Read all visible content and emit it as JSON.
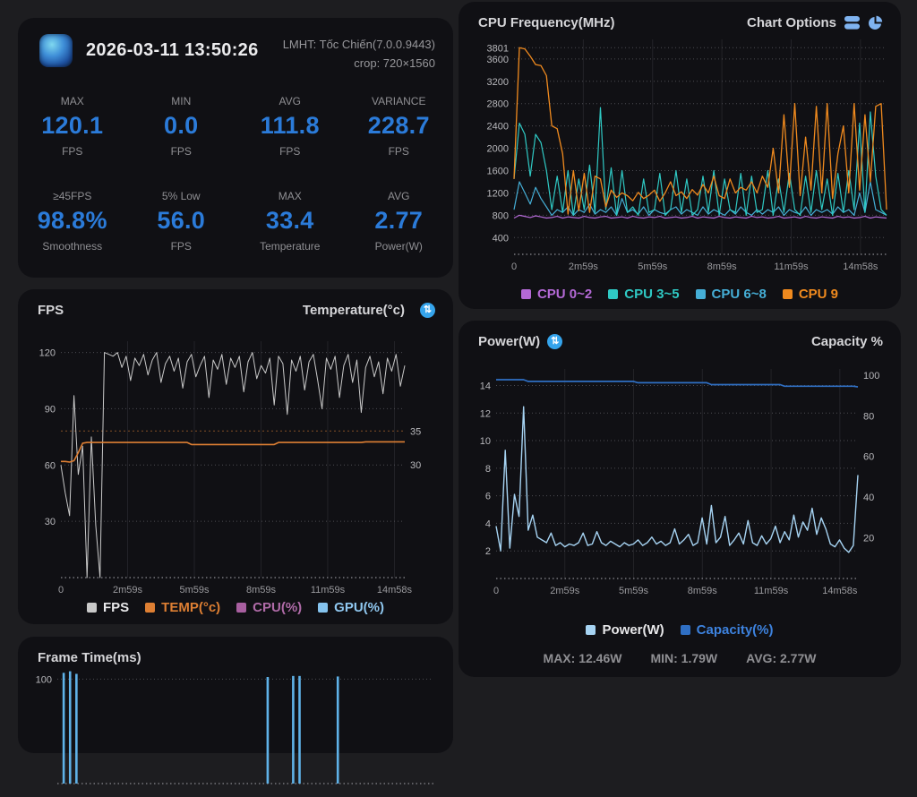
{
  "header": {
    "datetime": "2026-03-11 13:50:26",
    "app_name": "LMHT: Tốc Chiến(7.0.0.9443)",
    "crop": "crop: 720×1560"
  },
  "icons": {
    "swap": "⇅"
  },
  "stats": [
    {
      "label": "MAX",
      "value": "120.1",
      "unit": "FPS"
    },
    {
      "label": "MIN",
      "value": "0.0",
      "unit": "FPS"
    },
    {
      "label": "AVG",
      "value": "111.8",
      "unit": "FPS"
    },
    {
      "label": "VARIANCE",
      "value": "228.7",
      "unit": "FPS"
    },
    {
      "label": "≥45FPS",
      "value": "98.8%",
      "unit": "Smoothness"
    },
    {
      "label": "5% Low",
      "value": "56.0",
      "unit": "FPS"
    },
    {
      "label": "MAX",
      "value": "33.4",
      "unit": "Temperature"
    },
    {
      "label": "AVG",
      "value": "2.77",
      "unit": "Power(W)"
    }
  ],
  "chart_data": [
    {
      "id": "fps",
      "type": "line",
      "title": "FPS",
      "title_right": "Temperature(°c)",
      "x_ticks": [
        "0",
        "2m59s",
        "5m59s",
        "8m59s",
        "11m59s",
        "14m58s"
      ],
      "left_axis": {
        "label": "FPS",
        "range": [
          0,
          126
        ],
        "ticks": [
          30,
          60,
          90,
          120
        ]
      },
      "right_axis": {
        "label": "Temperature(°c)",
        "range": [
          13.3,
          48.3
        ],
        "ticks": [
          30,
          35
        ]
      },
      "extra_lines": [
        {
          "axis": "right",
          "value": 35,
          "color": "rgba(222,127,51,0.5)"
        }
      ],
      "series": [
        {
          "name": "FPS",
          "color": "#c9c9c9",
          "axis": "left",
          "width": 1,
          "values": [
            60,
            45,
            33,
            97,
            55,
            70,
            0,
            75,
            28,
            0,
            120,
            119,
            118,
            120,
            112,
            118,
            105,
            117,
            113,
            119,
            108,
            116,
            120,
            104,
            114,
            118,
            110,
            117,
            101,
            115,
            119,
            107,
            113,
            118,
            96,
            116,
            111,
            119,
            103,
            117,
            112,
            118,
            99,
            115,
            120,
            106,
            113,
            109,
            117,
            92,
            118,
            114,
            87,
            116,
            110,
            118,
            100,
            115,
            119,
            105,
            90,
            117,
            111,
            118,
            96,
            113,
            119,
            104,
            116,
            88,
            112,
            118,
            107,
            115,
            98,
            117,
            110,
            119,
            102,
            113
          ]
        },
        {
          "name": "TEMP(°c)",
          "color": "#de7f33",
          "axis": "right",
          "width": 1.6,
          "values": [
            30.5,
            30.5,
            30.4,
            30.6,
            31.8,
            33.2,
            33.3,
            33.3,
            33.3,
            33.3,
            33.3,
            33.3,
            33.3,
            33.3,
            33.3,
            33.3,
            33.3,
            33.3,
            33.3,
            33.3,
            33.3,
            33.3,
            33.3,
            33.3,
            33.3,
            33.3,
            33.3,
            33.3,
            33.3,
            33.3,
            33.0,
            33.0,
            33.0,
            33.0,
            33.0,
            33.0,
            33.0,
            33.0,
            33.0,
            33.0,
            33.0,
            33.0,
            33.0,
            33.0,
            33.0,
            33.0,
            33.0,
            33.0,
            33.0,
            33.0,
            33.3,
            33.3,
            33.3,
            33.3,
            33.3,
            33.3,
            33.3,
            33.3,
            33.3,
            33.3,
            33.3,
            33.3,
            33.3,
            33.3,
            33.3,
            33.3,
            33.3,
            33.3,
            33.3,
            33.3,
            33.4,
            33.4,
            33.4,
            33.4,
            33.4,
            33.4,
            33.4,
            33.4,
            33.4,
            33.4
          ]
        }
      ],
      "legend": [
        {
          "label": "FPS",
          "color": "#c9c9c9",
          "text": "#e8e8ea"
        },
        {
          "label": "TEMP(°c)",
          "color": "#de7f33",
          "text": "#de7f33"
        },
        {
          "label": "CPU(%)",
          "color": "#a85fa0",
          "text": "#b06ba8"
        },
        {
          "label": "GPU(%)",
          "color": "#85c3ee",
          "text": "#8fc7ef"
        }
      ]
    },
    {
      "id": "cpu_freq",
      "type": "line",
      "title": "CPU Frequency(MHz)",
      "options_label": "Chart Options",
      "x_ticks": [
        "0",
        "2m59s",
        "5m59s",
        "8m59s",
        "11m59s",
        "14m58s"
      ],
      "left_axis": {
        "label": "MHz",
        "range": [
          100,
          3950
        ],
        "ticks": [
          400,
          800,
          1200,
          1600,
          2000,
          2400,
          2800,
          3200,
          3600,
          3801
        ]
      },
      "series": [
        {
          "name": "CPU 0~2",
          "color": "#b469d6",
          "axis": "left",
          "width": 1.2,
          "values": [
            750,
            800,
            780,
            760,
            790,
            770,
            750,
            760,
            780,
            750,
            770,
            760,
            750,
            780,
            760,
            750,
            770,
            780,
            750,
            760,
            770,
            750,
            780,
            760,
            750,
            770,
            760,
            780,
            750,
            760,
            770,
            750,
            760,
            780,
            750,
            770,
            760,
            750,
            780,
            760,
            750,
            770,
            760,
            750,
            780,
            760,
            770,
            750,
            760,
            780,
            750,
            760,
            770,
            750,
            780,
            760,
            750,
            770,
            760,
            750,
            780,
            760,
            770,
            750,
            760,
            780,
            750,
            770,
            760,
            750
          ]
        },
        {
          "name": "CPU 6~8",
          "color": "#45aed6",
          "axis": "left",
          "width": 1.2,
          "values": [
            900,
            1400,
            1200,
            1000,
            1300,
            1100,
            950,
            800,
            900,
            850,
            950,
            800,
            900,
            850,
            1000,
            820,
            900,
            850,
            950,
            800,
            1100,
            850,
            900,
            820,
            950,
            800,
            900,
            850,
            820,
            900,
            950,
            820,
            900,
            850,
            800,
            950,
            820,
            900,
            850,
            800,
            900,
            820,
            950,
            850,
            800,
            900,
            820,
            900,
            850,
            950,
            800,
            900,
            850,
            820,
            950,
            800,
            900,
            850,
            900,
            820,
            950,
            850,
            900,
            800,
            1200,
            850,
            1400,
            900,
            850,
            800
          ]
        },
        {
          "name": "CPU 3~5",
          "color": "#2fc9c4",
          "axis": "left",
          "width": 1.2,
          "values": [
            1450,
            2450,
            2250,
            1500,
            2250,
            2100,
            1600,
            900,
            1500,
            850,
            1600,
            800,
            1450,
            900,
            1700,
            850,
            2730,
            900,
            1650,
            800,
            1600,
            850,
            950,
            800,
            1450,
            850,
            900,
            1550,
            800,
            900,
            1600,
            850,
            1450,
            800,
            900,
            1500,
            850,
            1600,
            800,
            1450,
            900,
            850,
            1550,
            800,
            1500,
            850,
            900,
            1600,
            800,
            1450,
            850,
            1550,
            900,
            800,
            1500,
            850,
            1600,
            900,
            1450,
            800,
            1550,
            850,
            1600,
            900,
            2450,
            850,
            2650,
            1500,
            900,
            800
          ]
        },
        {
          "name": "CPU 9",
          "color": "#f08a1e",
          "axis": "left",
          "width": 1.3,
          "values": [
            1450,
            3801,
            3780,
            3650,
            3500,
            3480,
            3300,
            2400,
            2350,
            1900,
            820,
            1600,
            880,
            1550,
            850,
            1500,
            1450,
            950,
            1250,
            1120,
            1200,
            1150,
            1060,
            1210,
            1100,
            1160,
            1250,
            1050,
            1200,
            1400,
            1150,
            1220,
            1100,
            1260,
            1160,
            1350,
            1200,
            1500,
            1150,
            1100,
            1450,
            1200,
            1300,
            1250,
            1400,
            1200,
            1500,
            1300,
            2000,
            1200,
            2600,
            1300,
            2800,
            1150,
            2200,
            1250,
            2750,
            1200,
            2800,
            1100,
            1900,
            2400,
            1200,
            2800,
            1250,
            2600,
            1400,
            2750,
            2800,
            900
          ]
        }
      ],
      "legend": [
        {
          "label": "CPU 0~2",
          "color": "#b469d6",
          "text": "#b469d6"
        },
        {
          "label": "CPU 3~5",
          "color": "#2fc9c4",
          "text": "#2fc9c4"
        },
        {
          "label": "CPU 6~8",
          "color": "#45aed6",
          "text": "#45aed6"
        },
        {
          "label": "CPU 9",
          "color": "#f08a1e",
          "text": "#f08a1e"
        }
      ]
    },
    {
      "id": "power",
      "type": "line",
      "title": "Power(W)",
      "title_right": "Capacity %",
      "x_ticks": [
        "0",
        "2m59s",
        "5m59s",
        "8m59s",
        "11m59s",
        "14m58s"
      ],
      "left_axis": {
        "label": "Power(W)",
        "range": [
          0,
          15.2
        ],
        "ticks": [
          2,
          4,
          6,
          8,
          10,
          12,
          14
        ]
      },
      "right_axis": {
        "label": "Capacity %",
        "range": [
          0,
          103
        ],
        "ticks": [
          20,
          40,
          60,
          80,
          100
        ]
      },
      "series": [
        {
          "name": "Capacity(%)",
          "color": "#2f6fc4",
          "axis": "right",
          "width": 1.7,
          "values": [
            97.7,
            97.7,
            97.7,
            97.7,
            97.7,
            97.7,
            97.7,
            96.9,
            96.9,
            96.9,
            96.9,
            96.9,
            96.9,
            96.9,
            96.9,
            96.9,
            96.9,
            96.9,
            96.9,
            96.9,
            96.9,
            96.9,
            96.9,
            96.9,
            96.9,
            96.9,
            96.9,
            96.9,
            96.9,
            96.9,
            96.9,
            96.2,
            96.2,
            96.2,
            96.2,
            96.2,
            96.2,
            96.2,
            96.2,
            96.2,
            96.2,
            96.2,
            96.2,
            96.2,
            96.2,
            96.2,
            96.2,
            95.3,
            95.3,
            95.3,
            95.3,
            95.3,
            95.3,
            95.3,
            95.3,
            95.3,
            95.3,
            95.3,
            95.3,
            95.3,
            95.3,
            95.3,
            95.3,
            94.5,
            94.5,
            94.5,
            94.5,
            94.5,
            94.5,
            94.5,
            94.5,
            94.5,
            94.5,
            94.5,
            94.5,
            94.5,
            94.5,
            94.5,
            94.5,
            94.2
          ]
        },
        {
          "name": "Power(W)",
          "color": "#a6d3f2",
          "axis": "left",
          "width": 1.4,
          "values": [
            3.8,
            2.0,
            9.3,
            2.2,
            6.1,
            4.5,
            12.46,
            3.5,
            4.6,
            3.0,
            2.8,
            2.6,
            3.3,
            2.4,
            2.6,
            2.3,
            2.5,
            2.4,
            2.6,
            3.3,
            2.4,
            2.5,
            3.4,
            2.6,
            2.4,
            2.7,
            2.5,
            2.3,
            2.6,
            2.4,
            2.5,
            2.8,
            2.4,
            2.6,
            3.0,
            2.5,
            2.7,
            2.4,
            2.6,
            3.6,
            2.5,
            2.8,
            3.2,
            2.4,
            2.6,
            4.4,
            2.5,
            5.3,
            2.6,
            3.0,
            4.5,
            2.4,
            2.8,
            3.3,
            2.5,
            4.2,
            2.6,
            2.4,
            3.1,
            2.5,
            2.9,
            3.8,
            2.6,
            3.4,
            2.8,
            4.6,
            3.0,
            4.1,
            3.5,
            5.1,
            3.2,
            4.4,
            3.6,
            2.5,
            2.3,
            2.8,
            2.2,
            1.9,
            2.4,
            7.5
          ]
        }
      ],
      "legend": [
        {
          "label": "Power(W)",
          "color": "#a6d3f2",
          "text": "#e8e8ea"
        },
        {
          "label": "Capacity(%)",
          "color": "#2f6fc4",
          "text": "#3d82de"
        }
      ],
      "stats": [
        "MAX: 12.46W",
        "MIN: 1.79W",
        "AVG: 2.77W"
      ]
    },
    {
      "id": "frame_time",
      "type": "bar",
      "title": "Frame Time(ms)",
      "x_ticks": [],
      "left_axis": {
        "label": "ms",
        "range": [
          0,
          108
        ],
        "ticks": [
          100
        ]
      },
      "series": [
        {
          "name": "Frame Time",
          "type": "bar",
          "color": "#5fb2e8",
          "axis": "left",
          "values": [
            0,
            106,
            107.5,
            105,
            0,
            0,
            0,
            0,
            0,
            0,
            0,
            0,
            0,
            0,
            0,
            0,
            0,
            0,
            0,
            0,
            0,
            0,
            0,
            0,
            0,
            0,
            0,
            0,
            0,
            0,
            0,
            0,
            0,
            102,
            0,
            0,
            0,
            103,
            103,
            0,
            0,
            0,
            0,
            0,
            102.5,
            0,
            0,
            0,
            0,
            0,
            0,
            0,
            0,
            0,
            0,
            0,
            0,
            0,
            0,
            0
          ]
        }
      ],
      "legend": []
    }
  ]
}
